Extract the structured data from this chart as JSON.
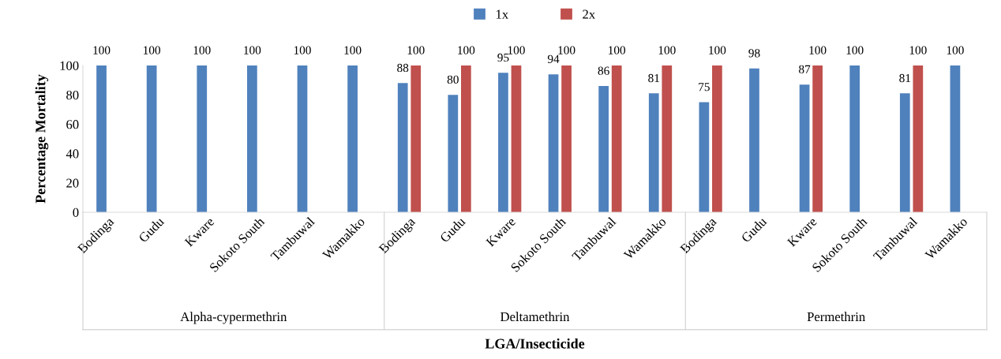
{
  "chart_data": {
    "type": "bar",
    "xlabel": "LGA/Insecticide",
    "ylabel": "Percentage Mortality",
    "categories": [
      "Bodinga",
      "Gudu",
      "Kware",
      "Sokoto South",
      "Tambuwal",
      "Wamakko",
      "Bodinga",
      "Gudu",
      "Kware",
      "Sokoto South",
      "Tambuwal",
      "Wamakko",
      "Bodinga",
      "Gudu",
      "Kware",
      "Sokoto South",
      "Tambuwal",
      "Wamakko"
    ],
    "series": [
      {
        "name": "1x",
        "color": "#4f81bd",
        "values": [
          100,
          100,
          100,
          100,
          100,
          100,
          88,
          80,
          95,
          94,
          86,
          81,
          75,
          98,
          87,
          100,
          81,
          100
        ]
      },
      {
        "name": "2x",
        "color": "#c0504d",
        "values": [
          null,
          null,
          null,
          null,
          null,
          null,
          100,
          100,
          100,
          100,
          100,
          100,
          100,
          null,
          100,
          null,
          100,
          null
        ]
      }
    ],
    "annotations": [
      "Alpha-cypermethrin",
      "Deltamethrin",
      "Permethrin"
    ],
    "ylim": [
      0,
      100
    ],
    "yticks": [
      0,
      20,
      40,
      60,
      80,
      100
    ],
    "data_labels": true,
    "grid": false,
    "legend": "top"
  }
}
